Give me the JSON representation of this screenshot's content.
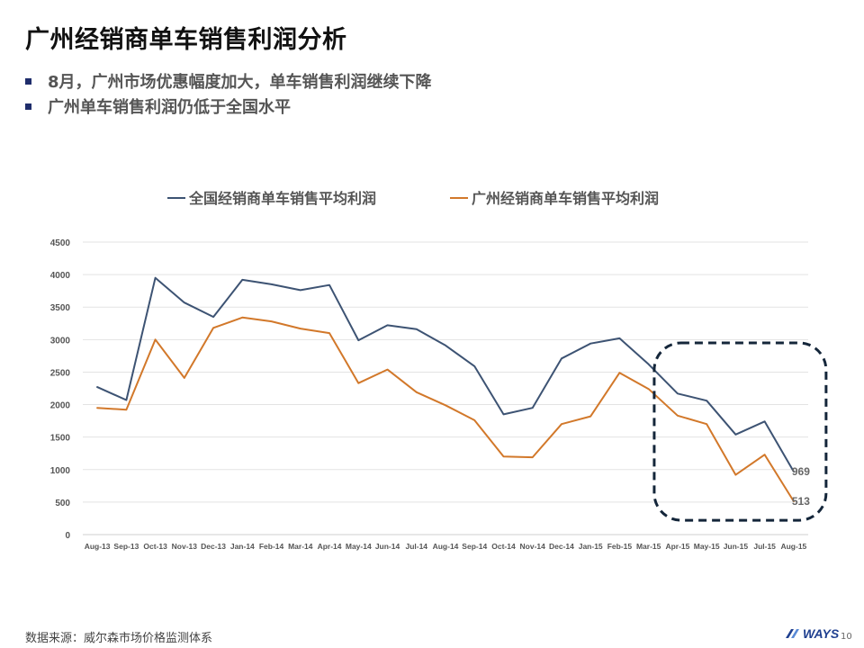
{
  "slide": {
    "title": "广州经销商单车销售利润分析",
    "bullets": [
      "8月，广州市场优惠幅度加大，单车销售利润继续下降",
      "广州单车销售利润仍低于全国水平"
    ],
    "source": "数据来源：威尔森市场价格监测体系",
    "logo_text": "WAYS",
    "page_number": "10"
  },
  "chart_data": {
    "type": "line",
    "categories": [
      "Aug-13",
      "Sep-13",
      "Oct-13",
      "Nov-13",
      "Dec-13",
      "Jan-14",
      "Feb-14",
      "Mar-14",
      "Apr-14",
      "May-14",
      "Jun-14",
      "Jul-14",
      "Aug-14",
      "Sep-14",
      "Oct-14",
      "Nov-14",
      "Dec-14",
      "Jan-15",
      "Feb-15",
      "Mar-15",
      "Apr-15",
      "May-15",
      "Jun-15",
      "Jul-15",
      "Aug-15"
    ],
    "series": [
      {
        "name": "全国经销商单车销售平均利润",
        "color": "#3d5373",
        "values": [
          2270,
          2070,
          3950,
          3570,
          3350,
          3920,
          3850,
          3760,
          3840,
          2990,
          3220,
          3160,
          2910,
          2590,
          1850,
          1950,
          2710,
          2940,
          3020,
          2620,
          2170,
          2060,
          1540,
          1740,
          969
        ]
      },
      {
        "name": "广州经销商单车销售平均利润",
        "color": "#d2782a",
        "values": [
          1950,
          1920,
          3000,
          2410,
          3180,
          3340,
          3280,
          3170,
          3100,
          2330,
          2540,
          2190,
          1990,
          1760,
          1200,
          1190,
          1700,
          1820,
          2490,
          2240,
          1830,
          1700,
          920,
          1230,
          513
        ]
      }
    ],
    "ylim": [
      0,
      4500
    ],
    "yticks": [
      0,
      500,
      1000,
      1500,
      2000,
      2500,
      3000,
      3500,
      4000,
      4500
    ],
    "data_labels": [
      {
        "series": 0,
        "index": 24,
        "text": "969"
      },
      {
        "series": 1,
        "index": 24,
        "text": "513"
      }
    ],
    "grid": true,
    "legend": "top",
    "highlight": "dashed rounded box around Apr-15 to Aug-15"
  }
}
